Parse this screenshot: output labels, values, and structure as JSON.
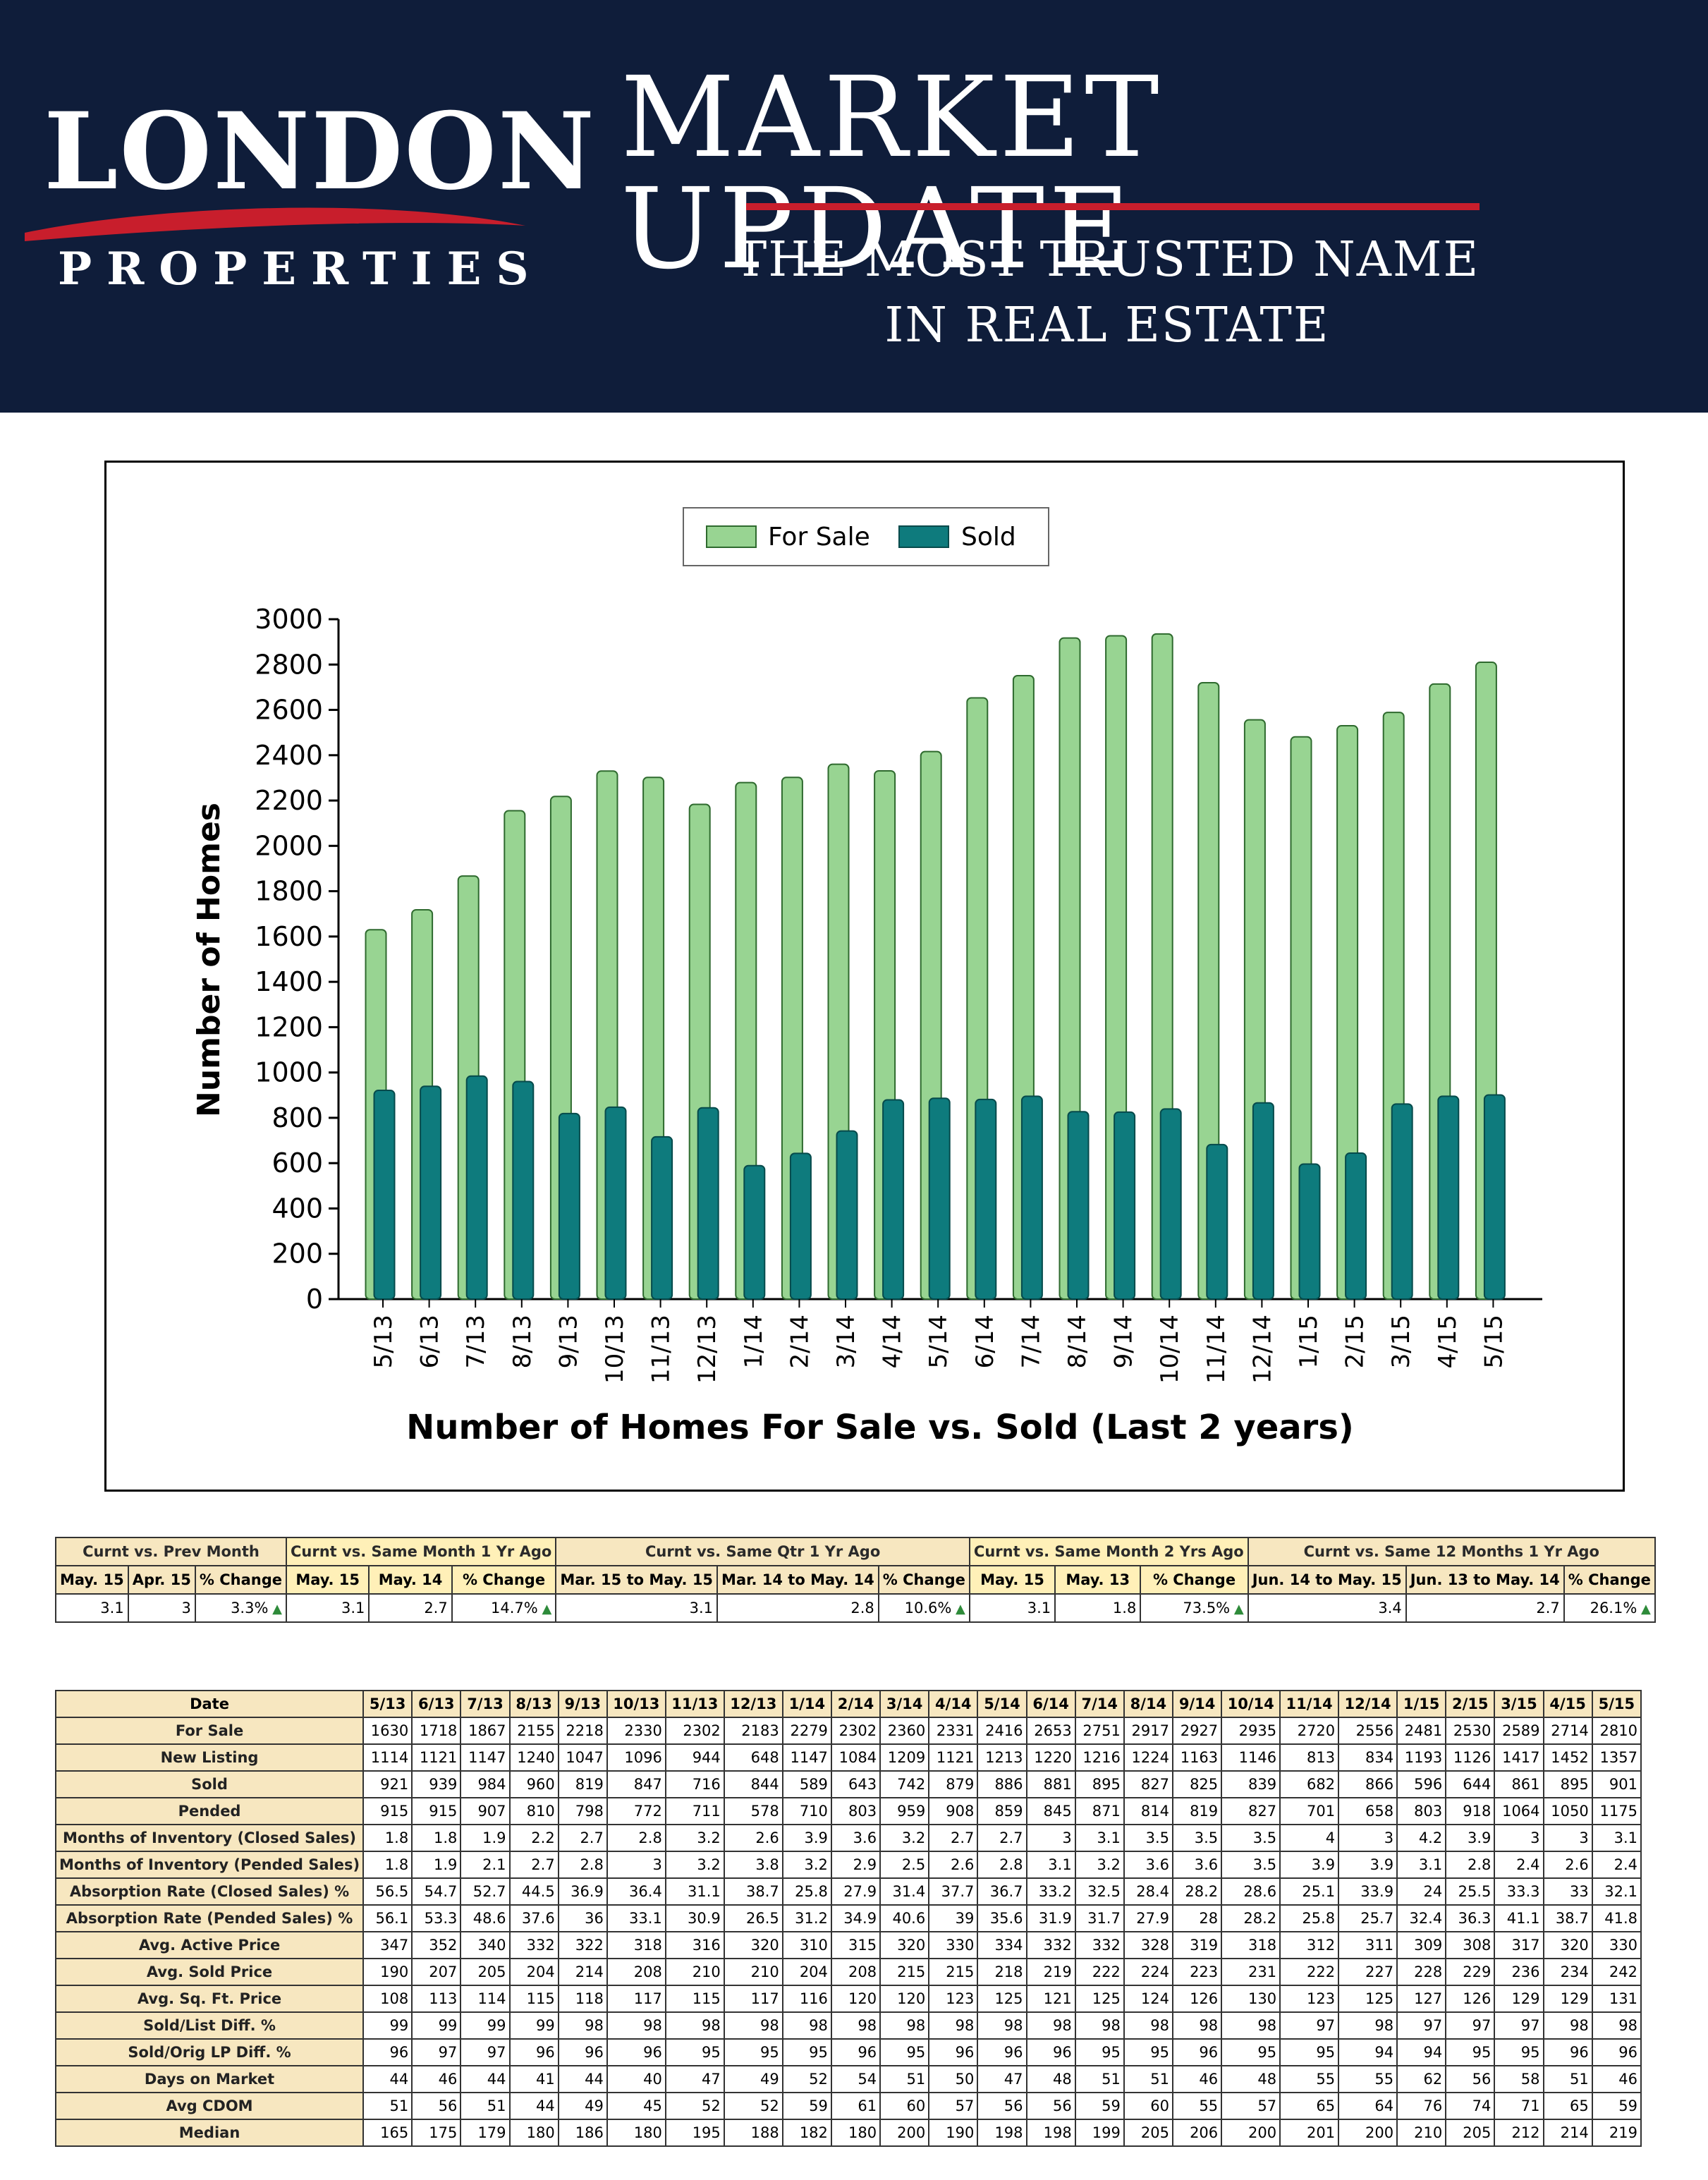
{
  "banner": {
    "logo_main": "LONDON",
    "logo_sub": "PROPERTIES",
    "title": "MARKET UPDATE",
    "tagline_line1": "THE MOST TRUSTED NAME",
    "tagline_line2": "IN REAL ESTATE",
    "background_color": "#0f1d3a",
    "accent_color": "#c81e2c"
  },
  "chart_data": {
    "type": "bar",
    "title": "Number of Homes For Sale vs. Sold (Last 2 years)",
    "ylabel": "Number of Homes",
    "xlabel": "",
    "ylim": [
      0,
      3000
    ],
    "yticks": [
      0,
      200,
      400,
      600,
      800,
      1000,
      1200,
      1400,
      1600,
      1800,
      2000,
      2200,
      2400,
      2600,
      2800,
      3000
    ],
    "legend_position": "top-center",
    "categories": [
      "5/13",
      "6/13",
      "7/13",
      "8/13",
      "9/13",
      "10/13",
      "11/13",
      "12/13",
      "1/14",
      "2/14",
      "3/14",
      "4/14",
      "5/14",
      "6/14",
      "7/14",
      "8/14",
      "9/14",
      "10/14",
      "11/14",
      "12/14",
      "1/15",
      "2/15",
      "3/15",
      "4/15",
      "5/15"
    ],
    "series": [
      {
        "name": "For Sale",
        "color": "#98d492",
        "values": [
          1630,
          1718,
          1867,
          2155,
          2218,
          2330,
          2302,
          2183,
          2279,
          2302,
          2360,
          2331,
          2416,
          2653,
          2751,
          2917,
          2927,
          2935,
          2720,
          2556,
          2481,
          2530,
          2589,
          2714,
          2810
        ]
      },
      {
        "name": "Sold",
        "color": "#0e7b7d",
        "values": [
          921,
          939,
          984,
          960,
          819,
          847,
          716,
          844,
          589,
          643,
          742,
          879,
          886,
          881,
          895,
          827,
          825,
          839,
          682,
          866,
          596,
          644,
          861,
          895,
          901
        ]
      }
    ]
  },
  "summary": {
    "groups": [
      {
        "label": "Curnt vs. Prev Month",
        "cols": [
          "May. 15",
          "Apr. 15",
          "% Change"
        ],
        "values": [
          "3.1",
          "3",
          "3.3%"
        ]
      },
      {
        "label": "Curnt vs. Same Month 1 Yr Ago",
        "cols": [
          "May. 15",
          "May. 14",
          "% Change"
        ],
        "values": [
          "3.1",
          "2.7",
          "14.7%"
        ]
      },
      {
        "label": "Curnt vs. Same Qtr 1 Yr Ago",
        "cols": [
          "Mar. 15 to May. 15",
          "Mar. 14 to May. 14",
          "% Change"
        ],
        "values": [
          "3.1",
          "2.8",
          "10.6%"
        ]
      },
      {
        "label": "Curnt vs. Same Month 2 Yrs Ago",
        "cols": [
          "May. 15",
          "May. 13",
          "% Change"
        ],
        "values": [
          "3.1",
          "1.8",
          "73.5%"
        ]
      },
      {
        "label": "Curnt vs. Same 12 Months 1 Yr Ago",
        "cols": [
          "Jun. 14 to May. 15",
          "Jun. 13 to May. 14",
          "% Change"
        ],
        "values": [
          "3.4",
          "2.7",
          "26.1%"
        ]
      }
    ]
  },
  "data_table": {
    "header_label": "Date",
    "dates": [
      "5/13",
      "6/13",
      "7/13",
      "8/13",
      "9/13",
      "10/13",
      "11/13",
      "12/13",
      "1/14",
      "2/14",
      "3/14",
      "4/14",
      "5/14",
      "6/14",
      "7/14",
      "8/14",
      "9/14",
      "10/14",
      "11/14",
      "12/14",
      "1/15",
      "2/15",
      "3/15",
      "4/15",
      "5/15"
    ],
    "rows": [
      {
        "label": "For Sale",
        "values": [
          "1630",
          "1718",
          "1867",
          "2155",
          "2218",
          "2330",
          "2302",
          "2183",
          "2279",
          "2302",
          "2360",
          "2331",
          "2416",
          "2653",
          "2751",
          "2917",
          "2927",
          "2935",
          "2720",
          "2556",
          "2481",
          "2530",
          "2589",
          "2714",
          "2810"
        ]
      },
      {
        "label": "New Listing",
        "values": [
          "1114",
          "1121",
          "1147",
          "1240",
          "1047",
          "1096",
          "944",
          "648",
          "1147",
          "1084",
          "1209",
          "1121",
          "1213",
          "1220",
          "1216",
          "1224",
          "1163",
          "1146",
          "813",
          "834",
          "1193",
          "1126",
          "1417",
          "1452",
          "1357"
        ]
      },
      {
        "label": "Sold",
        "values": [
          "921",
          "939",
          "984",
          "960",
          "819",
          "847",
          "716",
          "844",
          "589",
          "643",
          "742",
          "879",
          "886",
          "881",
          "895",
          "827",
          "825",
          "839",
          "682",
          "866",
          "596",
          "644",
          "861",
          "895",
          "901"
        ]
      },
      {
        "label": "Pended",
        "values": [
          "915",
          "915",
          "907",
          "810",
          "798",
          "772",
          "711",
          "578",
          "710",
          "803",
          "959",
          "908",
          "859",
          "845",
          "871",
          "814",
          "819",
          "827",
          "701",
          "658",
          "803",
          "918",
          "1064",
          "1050",
          "1175"
        ]
      },
      {
        "label": "Months of Inventory (Closed Sales)",
        "values": [
          "1.8",
          "1.8",
          "1.9",
          "2.2",
          "2.7",
          "2.8",
          "3.2",
          "2.6",
          "3.9",
          "3.6",
          "3.2",
          "2.7",
          "2.7",
          "3",
          "3.1",
          "3.5",
          "3.5",
          "3.5",
          "4",
          "3",
          "4.2",
          "3.9",
          "3",
          "3",
          "3.1"
        ]
      },
      {
        "label": "Months of Inventory (Pended Sales)",
        "values": [
          "1.8",
          "1.9",
          "2.1",
          "2.7",
          "2.8",
          "3",
          "3.2",
          "3.8",
          "3.2",
          "2.9",
          "2.5",
          "2.6",
          "2.8",
          "3.1",
          "3.2",
          "3.6",
          "3.6",
          "3.5",
          "3.9",
          "3.9",
          "3.1",
          "2.8",
          "2.4",
          "2.6",
          "2.4"
        ]
      },
      {
        "label": "Absorption Rate (Closed Sales) %",
        "values": [
          "56.5",
          "54.7",
          "52.7",
          "44.5",
          "36.9",
          "36.4",
          "31.1",
          "38.7",
          "25.8",
          "27.9",
          "31.4",
          "37.7",
          "36.7",
          "33.2",
          "32.5",
          "28.4",
          "28.2",
          "28.6",
          "25.1",
          "33.9",
          "24",
          "25.5",
          "33.3",
          "33",
          "32.1"
        ]
      },
      {
        "label": "Absorption Rate (Pended Sales) %",
        "values": [
          "56.1",
          "53.3",
          "48.6",
          "37.6",
          "36",
          "33.1",
          "30.9",
          "26.5",
          "31.2",
          "34.9",
          "40.6",
          "39",
          "35.6",
          "31.9",
          "31.7",
          "27.9",
          "28",
          "28.2",
          "25.8",
          "25.7",
          "32.4",
          "36.3",
          "41.1",
          "38.7",
          "41.8"
        ]
      },
      {
        "label": "Avg. Active Price",
        "values": [
          "347",
          "352",
          "340",
          "332",
          "322",
          "318",
          "316",
          "320",
          "310",
          "315",
          "320",
          "330",
          "334",
          "332",
          "332",
          "328",
          "319",
          "318",
          "312",
          "311",
          "309",
          "308",
          "317",
          "320",
          "330"
        ]
      },
      {
        "label": "Avg. Sold Price",
        "values": [
          "190",
          "207",
          "205",
          "204",
          "214",
          "208",
          "210",
          "210",
          "204",
          "208",
          "215",
          "215",
          "218",
          "219",
          "222",
          "224",
          "223",
          "231",
          "222",
          "227",
          "228",
          "229",
          "236",
          "234",
          "242"
        ]
      },
      {
        "label": "Avg. Sq. Ft. Price",
        "values": [
          "108",
          "113",
          "114",
          "115",
          "118",
          "117",
          "115",
          "117",
          "116",
          "120",
          "120",
          "123",
          "125",
          "121",
          "125",
          "124",
          "126",
          "130",
          "123",
          "125",
          "127",
          "126",
          "129",
          "129",
          "131"
        ]
      },
      {
        "label": "Sold/List Diff. %",
        "values": [
          "99",
          "99",
          "99",
          "99",
          "98",
          "98",
          "98",
          "98",
          "98",
          "98",
          "98",
          "98",
          "98",
          "98",
          "98",
          "98",
          "98",
          "98",
          "97",
          "98",
          "97",
          "97",
          "97",
          "98",
          "98"
        ]
      },
      {
        "label": "Sold/Orig LP Diff. %",
        "values": [
          "96",
          "97",
          "97",
          "96",
          "96",
          "96",
          "95",
          "95",
          "95",
          "96",
          "95",
          "96",
          "96",
          "96",
          "95",
          "95",
          "96",
          "95",
          "95",
          "94",
          "94",
          "95",
          "95",
          "96",
          "96"
        ]
      },
      {
        "label": "Days on Market",
        "values": [
          "44",
          "46",
          "44",
          "41",
          "44",
          "40",
          "47",
          "49",
          "52",
          "54",
          "51",
          "50",
          "47",
          "48",
          "51",
          "51",
          "46",
          "48",
          "55",
          "55",
          "62",
          "56",
          "58",
          "51",
          "46"
        ]
      },
      {
        "label": "Avg CDOM",
        "values": [
          "51",
          "56",
          "51",
          "44",
          "49",
          "45",
          "52",
          "52",
          "59",
          "61",
          "60",
          "57",
          "56",
          "56",
          "59",
          "60",
          "55",
          "57",
          "65",
          "64",
          "76",
          "74",
          "71",
          "65",
          "59"
        ]
      },
      {
        "label": "Median",
        "values": [
          "165",
          "175",
          "179",
          "180",
          "186",
          "180",
          "195",
          "188",
          "182",
          "180",
          "200",
          "190",
          "198",
          "198",
          "199",
          "205",
          "206",
          "200",
          "201",
          "200",
          "210",
          "205",
          "212",
          "214",
          "219"
        ]
      }
    ]
  }
}
